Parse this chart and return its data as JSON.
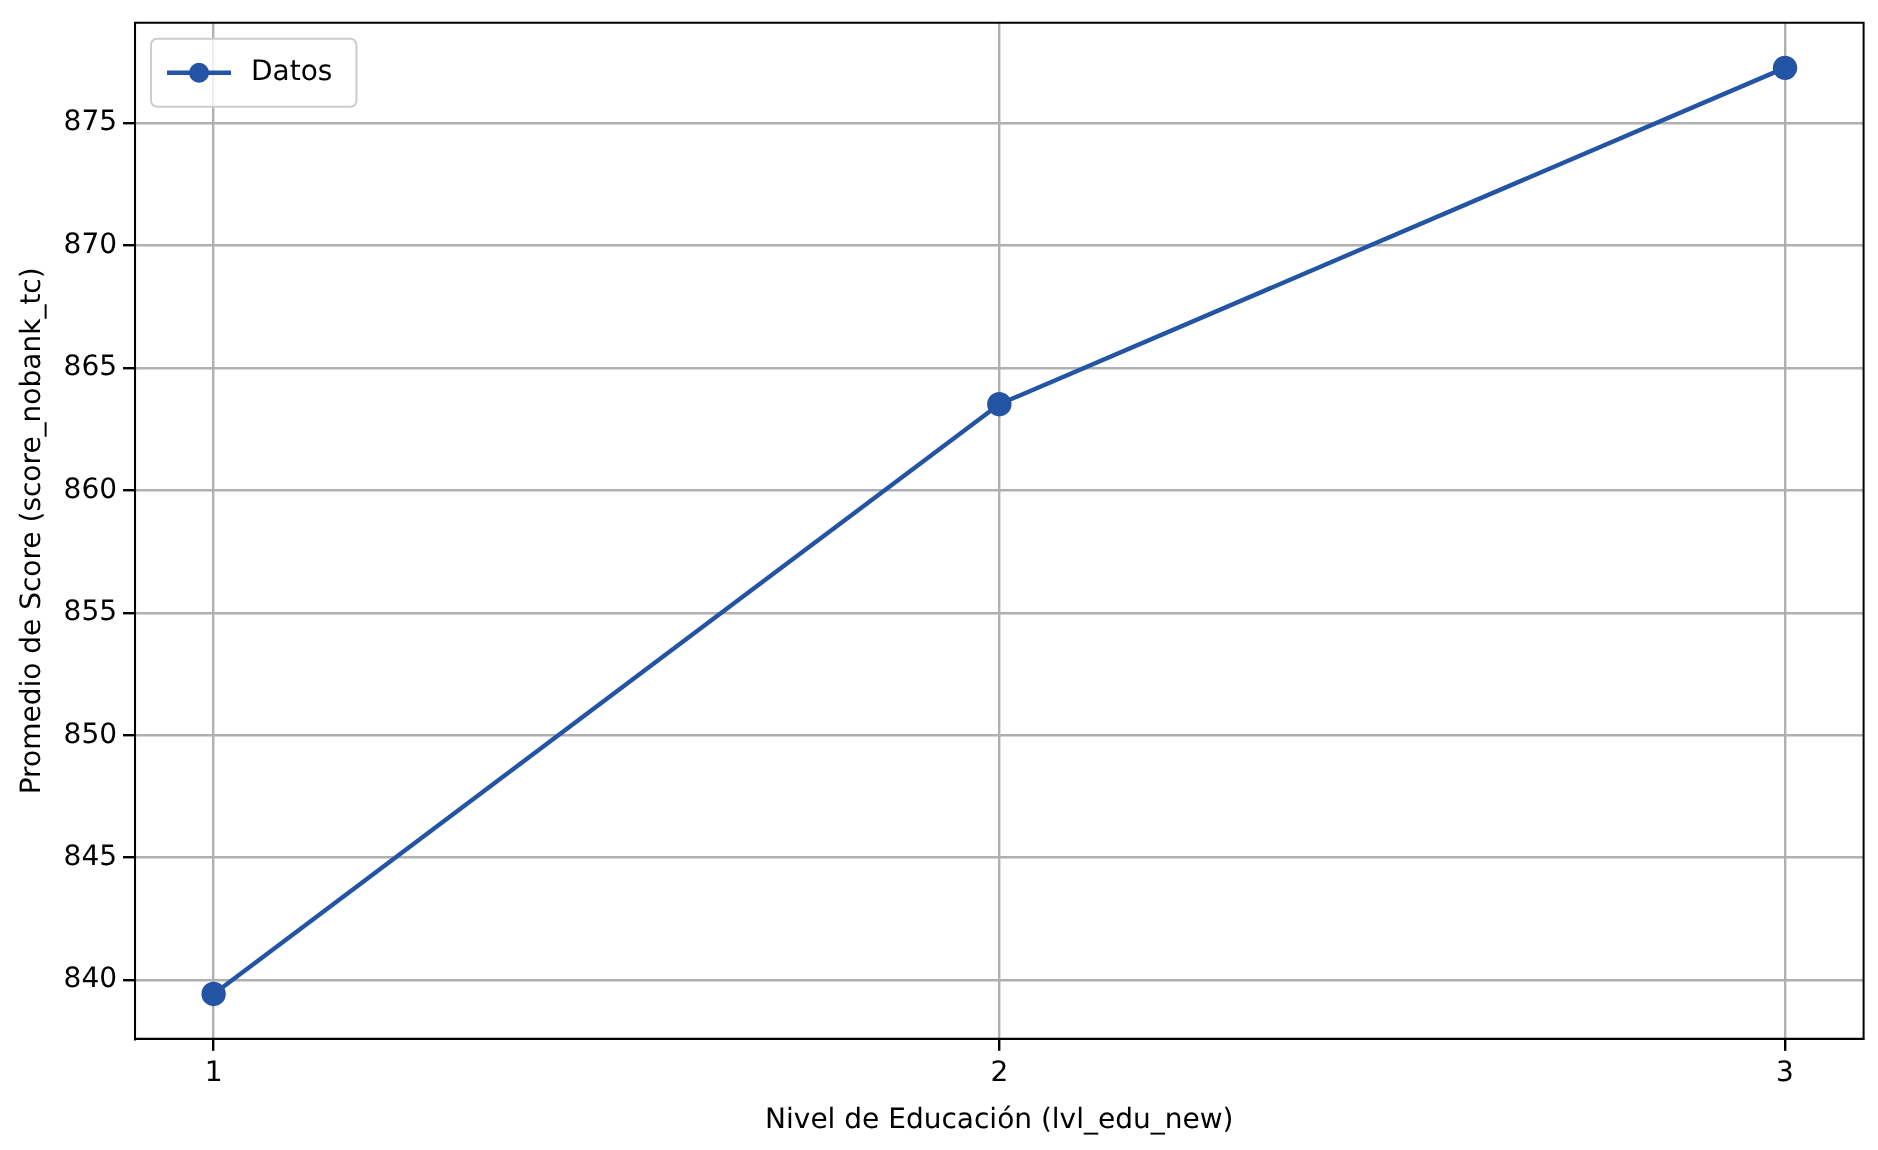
{
  "chart_data": {
    "type": "line",
    "xlabel": "Nivel de Educación (lvl_edu_new)",
    "ylabel": "Promedio de Score (score_nobank_tc)",
    "x": [
      1,
      2,
      3
    ],
    "series": [
      {
        "name": "Datos",
        "color": "#2455a4",
        "values": [
          839.43,
          863.52,
          877.26
        ]
      }
    ],
    "xlim": [
      0.9,
      3.1
    ],
    "xticks": [
      1,
      2,
      3
    ],
    "ylim": [
      837.6,
      879.1
    ],
    "yticks": [
      840,
      845,
      850,
      855,
      860,
      865,
      870,
      875
    ],
    "grid": true,
    "legend": "top left",
    "marker": "circle",
    "line_style": "solid"
  }
}
